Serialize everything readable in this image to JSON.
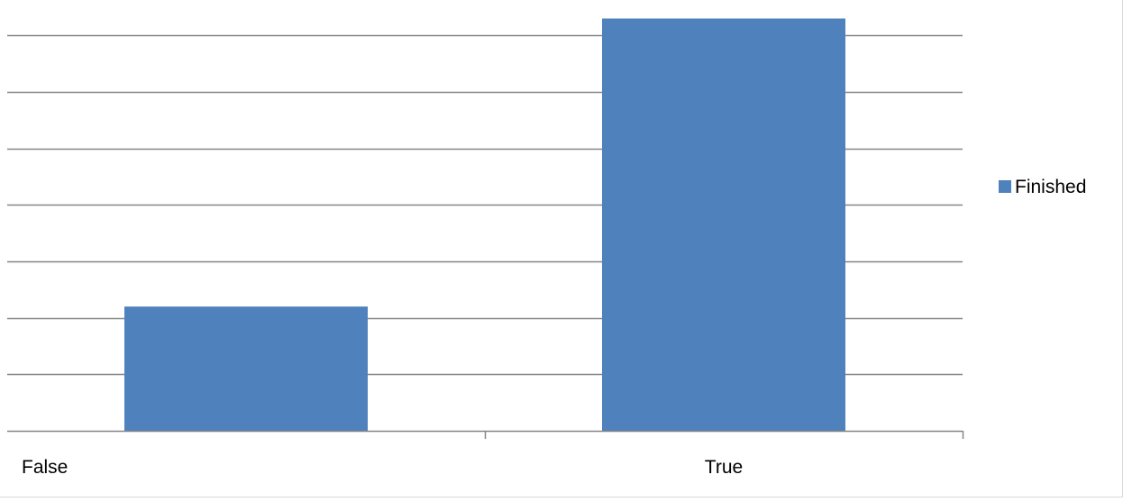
{
  "chart_data": {
    "type": "bar",
    "categories": [
      "False",
      "True"
    ],
    "series": [
      {
        "name": "Finished",
        "values": [
          22,
          73
        ]
      }
    ],
    "ylim": [
      0,
      75
    ],
    "y_gridline_step": 10,
    "grid": true,
    "legend": {
      "position": "right",
      "entries": [
        "Finished"
      ]
    },
    "colors": {
      "bar": "#4f81bd",
      "grid": "#868686",
      "axis": "#868686",
      "border": "#d9d9d9"
    }
  }
}
